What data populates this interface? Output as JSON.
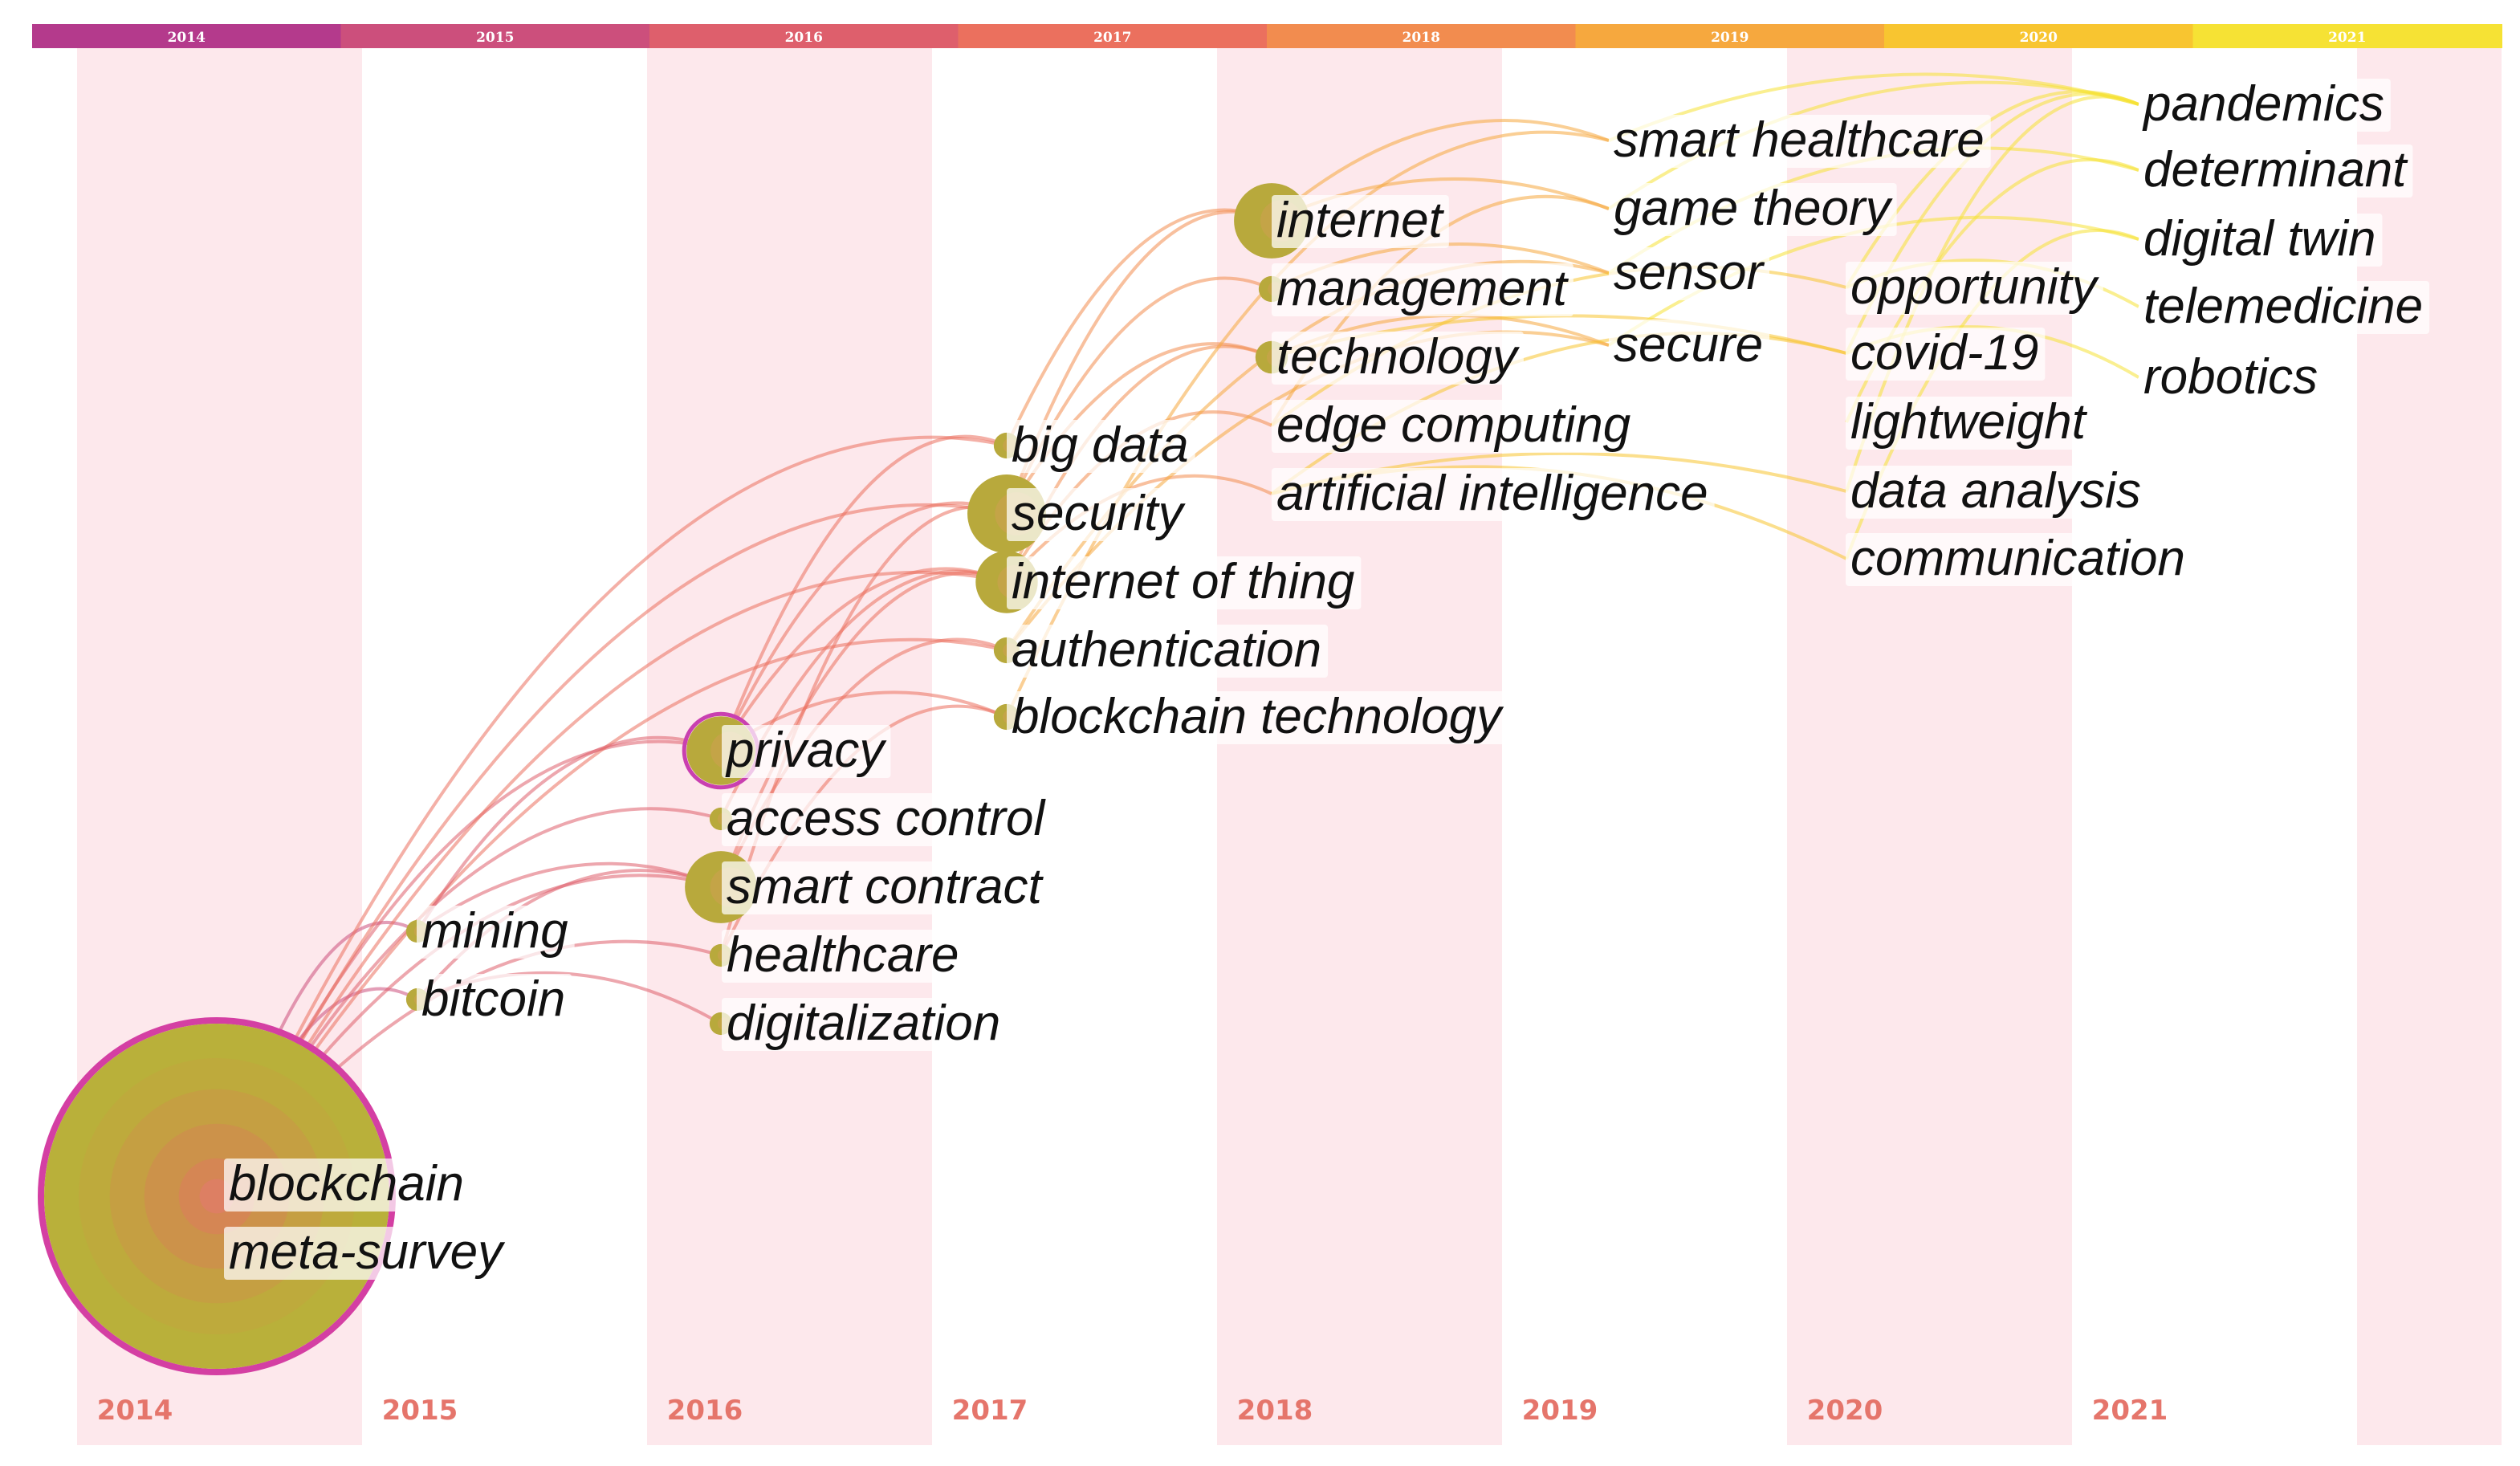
{
  "timeline": {
    "years": [
      "2014",
      "2015",
      "2016",
      "2017",
      "2018",
      "2019",
      "2020",
      "2021"
    ],
    "top_bar_labels": [
      "2014",
      "2015",
      "2016",
      "2017",
      "2018",
      "2019",
      "2020",
      "2021"
    ],
    "top_bar_colors": [
      "#b43a8c",
      "#cc4f7c",
      "#de5f6c",
      "#eb705e",
      "#f28c4f",
      "#f6a83e",
      "#f8c530",
      "#f6e234"
    ],
    "stripe_color": "#fde8ec"
  },
  "keywords": [
    {
      "text": "blockchain",
      "year": "2014",
      "slot": 0
    },
    {
      "text": "meta-survey",
      "year": "2014",
      "slot": 1
    },
    {
      "text": "mining",
      "year": "2015",
      "slot": 0
    },
    {
      "text": "bitcoin",
      "year": "2015",
      "slot": 1
    },
    {
      "text": "privacy",
      "year": "2016",
      "slot": 0
    },
    {
      "text": "access control",
      "year": "2016",
      "slot": 1
    },
    {
      "text": "smart contract",
      "year": "2016",
      "slot": 2
    },
    {
      "text": "healthcare",
      "year": "2016",
      "slot": 3
    },
    {
      "text": "digitalization",
      "year": "2016",
      "slot": 4
    },
    {
      "text": "big data",
      "year": "2017",
      "slot": 0
    },
    {
      "text": "security",
      "year": "2017",
      "slot": 1
    },
    {
      "text": "internet of thing",
      "year": "2017",
      "slot": 2
    },
    {
      "text": "authentication",
      "year": "2017",
      "slot": 3
    },
    {
      "text": "blockchain technology",
      "year": "2017",
      "slot": 4
    },
    {
      "text": "internet",
      "year": "2018",
      "slot": 0
    },
    {
      "text": "management",
      "year": "2018",
      "slot": 1
    },
    {
      "text": "technology",
      "year": "2018",
      "slot": 2
    },
    {
      "text": "edge computing",
      "year": "2018",
      "slot": 3
    },
    {
      "text": "artificial intelligence",
      "year": "2018",
      "slot": 4
    },
    {
      "text": "smart healthcare",
      "year": "2019",
      "slot": 0
    },
    {
      "text": "game theory",
      "year": "2019",
      "slot": 1
    },
    {
      "text": "sensor",
      "year": "2019",
      "slot": 2
    },
    {
      "text": "secure",
      "year": "2019",
      "slot": 3
    },
    {
      "text": "opportunity",
      "year": "2020",
      "slot": 0
    },
    {
      "text": "covid-19",
      "year": "2020",
      "slot": 1
    },
    {
      "text": "lightweight",
      "year": "2020",
      "slot": 2
    },
    {
      "text": "data analysis",
      "year": "2020",
      "slot": 3
    },
    {
      "text": "communication",
      "year": "2020",
      "slot": 4
    },
    {
      "text": "pandemics",
      "year": "2021",
      "slot": 0
    },
    {
      "text": "determinant",
      "year": "2021",
      "slot": 1
    },
    {
      "text": "digital twin",
      "year": "2021",
      "slot": 2
    },
    {
      "text": "telemedicine",
      "year": "2021",
      "slot": 3
    },
    {
      "text": "robotics",
      "year": "2021",
      "slot": 4
    }
  ],
  "links": [
    [
      "blockchain",
      "mining"
    ],
    [
      "blockchain",
      "bitcoin"
    ],
    [
      "blockchain",
      "privacy"
    ],
    [
      "blockchain",
      "access control"
    ],
    [
      "blockchain",
      "smart contract"
    ],
    [
      "blockchain",
      "security"
    ],
    [
      "blockchain",
      "big data"
    ],
    [
      "blockchain",
      "internet of thing"
    ],
    [
      "blockchain",
      "authentication"
    ],
    [
      "blockchain",
      "healthcare"
    ],
    [
      "mining",
      "smart contract"
    ],
    [
      "mining",
      "privacy"
    ],
    [
      "bitcoin",
      "digitalization"
    ],
    [
      "bitcoin",
      "smart contract"
    ],
    [
      "privacy",
      "security"
    ],
    [
      "privacy",
      "internet of thing"
    ],
    [
      "privacy",
      "blockchain technology"
    ],
    [
      "privacy",
      "big data"
    ],
    [
      "access control",
      "internet of thing"
    ],
    [
      "smart contract",
      "internet of thing"
    ],
    [
      "smart contract",
      "authentication"
    ],
    [
      "healthcare",
      "blockchain technology"
    ],
    [
      "healthcare",
      "security"
    ],
    [
      "security",
      "internet"
    ],
    [
      "security",
      "technology"
    ],
    [
      "security",
      "management"
    ],
    [
      "internet of thing",
      "edge computing"
    ],
    [
      "internet of thing",
      "artificial intelligence"
    ],
    [
      "internet of thing",
      "technology"
    ],
    [
      "authentication",
      "secure"
    ],
    [
      "authentication",
      "sensor"
    ],
    [
      "blockchain technology",
      "smart healthcare"
    ],
    [
      "big data",
      "internet"
    ],
    [
      "internet",
      "smart healthcare"
    ],
    [
      "internet",
      "game theory"
    ],
    [
      "management",
      "sensor"
    ],
    [
      "technology",
      "secure"
    ],
    [
      "technology",
      "covid-19"
    ],
    [
      "edge computing",
      "game theory"
    ],
    [
      "edge computing",
      "opportunity"
    ],
    [
      "artificial intelligence",
      "covid-19"
    ],
    [
      "artificial intelligence",
      "data analysis"
    ],
    [
      "artificial intelligence",
      "communication"
    ],
    [
      "smart healthcare",
      "pandemics"
    ],
    [
      "game theory",
      "pandemics"
    ],
    [
      "sensor",
      "determinant"
    ],
    [
      "secure",
      "digital twin"
    ],
    [
      "opportunity",
      "pandemics"
    ],
    [
      "opportunity",
      "telemedicine"
    ],
    [
      "covid-19",
      "pandemics"
    ],
    [
      "covid-19",
      "robotics"
    ],
    [
      "lightweight",
      "determinant"
    ],
    [
      "data analysis",
      "pandemics"
    ],
    [
      "communication",
      "digital twin"
    ]
  ],
  "node_sizes": {
    "blockchain": 1.0,
    "privacy": 0.16,
    "smart contract": 0.17,
    "security": 0.19,
    "internet of thing": 0.14,
    "internet": 0.18,
    "mining": 0.02,
    "bitcoin": 0.02,
    "big data": 0.03,
    "authentication": 0.03,
    "blockchain technology": 0.03,
    "management": 0.03,
    "technology": 0.05,
    "access control": 0.02,
    "healthcare": 0.02,
    "digitalization": 0.02
  }
}
